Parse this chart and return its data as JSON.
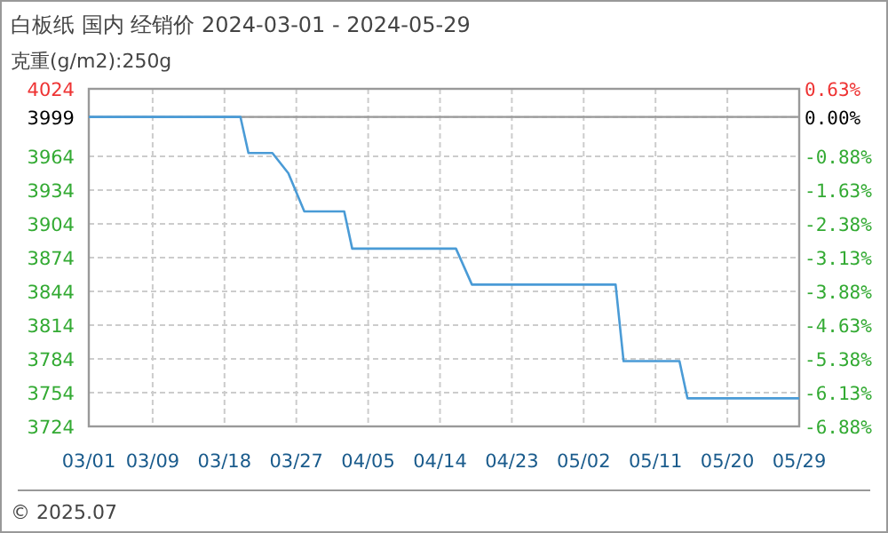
{
  "chart_data": {
    "type": "line",
    "title": "白板纸 国内 经销价 2024-03-01 - 2024-05-29",
    "subtitle": "克重(g/m2):250g",
    "annotations": [
      "© 2025.07"
    ],
    "x": [
      "2024-03-01",
      "2024-03-20",
      "2024-03-21",
      "2024-03-24",
      "2024-03-26",
      "2024-03-28",
      "2024-04-02",
      "2024-04-03",
      "2024-04-16",
      "2024-04-18",
      "2024-05-06",
      "2024-05-07",
      "2024-05-14",
      "2024-05-15",
      "2024-05-29"
    ],
    "series": [
      {
        "color": "#4a9bd6",
        "values": [
          3999,
          3999,
          3967,
          3967,
          3949,
          3915,
          3915,
          3882,
          3882,
          3850,
          3850,
          3782,
          3782,
          3749,
          3749
        ]
      }
    ],
    "xlim": [
      "2024-03-01",
      "2024-05-29"
    ],
    "xticks": [
      {
        "value": "2024-03-01",
        "label": "03/01"
      },
      {
        "value": "2024-03-09",
        "label": "03/09"
      },
      {
        "value": "2024-03-18",
        "label": "03/18"
      },
      {
        "value": "2024-03-27",
        "label": "03/27"
      },
      {
        "value": "2024-04-05",
        "label": "04/05"
      },
      {
        "value": "2024-04-14",
        "label": "04/14"
      },
      {
        "value": "2024-04-23",
        "label": "04/23"
      },
      {
        "value": "2024-05-02",
        "label": "05/02"
      },
      {
        "value": "2024-05-11",
        "label": "05/11"
      },
      {
        "value": "2024-05-20",
        "label": "05/20"
      },
      {
        "value": "2024-05-29",
        "label": "05/29"
      }
    ],
    "ylim": [
      3724,
      4024
    ],
    "yticks": [
      3724,
      3754,
      3784,
      3814,
      3844,
      3874,
      3904,
      3934,
      3964,
      3999,
      4024
    ],
    "y2lim": [
      -6.88,
      0.63
    ],
    "y2ticks": [
      {
        "value": -6.88,
        "label": "-6.88%"
      },
      {
        "value": -6.13,
        "label": "-6.13%"
      },
      {
        "value": -5.38,
        "label": "-5.38%"
      },
      {
        "value": -4.63,
        "label": "-4.63%"
      },
      {
        "value": -3.88,
        "label": "-3.88%"
      },
      {
        "value": -3.13,
        "label": "-3.13%"
      },
      {
        "value": -2.38,
        "label": "-2.38%"
      },
      {
        "value": -1.63,
        "label": "-1.63%"
      },
      {
        "value": -0.88,
        "label": "-0.88%"
      },
      {
        "value": 0,
        "label": "0.00%"
      },
      {
        "value": 0.63,
        "label": "0.63%"
      }
    ],
    "ref_lines": [
      {
        "axis": "y",
        "value": 3999,
        "color": "#999999"
      }
    ],
    "grid": true,
    "line_style": "solid",
    "marker": "none"
  }
}
